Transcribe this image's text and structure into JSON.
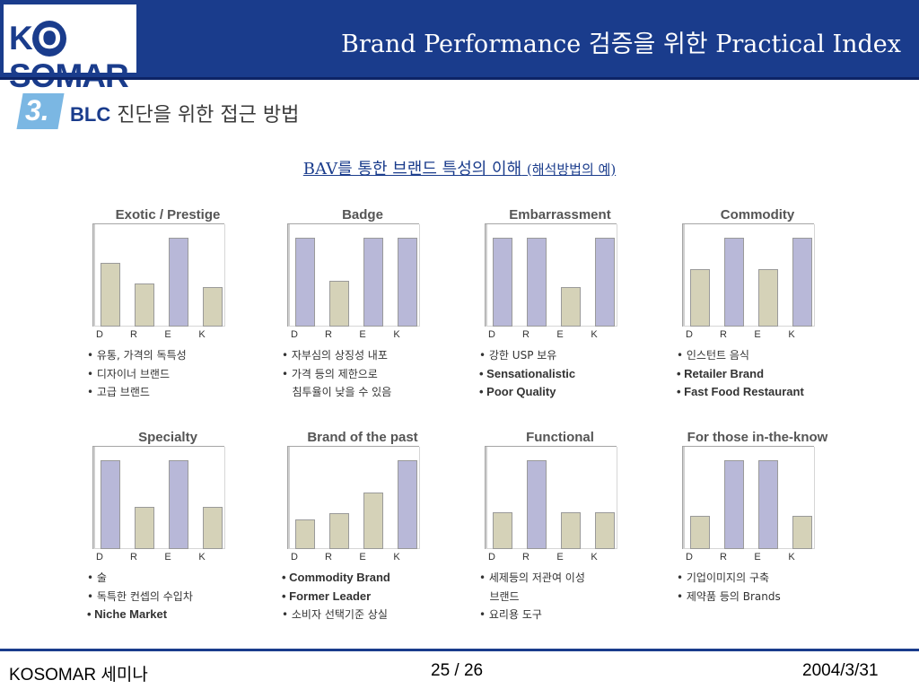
{
  "header": {
    "logo_text": "KOSOMAR",
    "title": "Brand Performance 검증을 위한 Practical Index"
  },
  "section": {
    "number": "3.",
    "title_bold": "BLC",
    "title_rest": " 진단을 위한 접근 방법"
  },
  "subtitle": {
    "main": "BAV를 통한 브랜드 특성의 이해",
    "note": "(해석방법의 예)"
  },
  "colors": {
    "low_bar": "#d5d2b8",
    "high_bar": "#b8b8d8",
    "header": "#1a3c8c"
  },
  "chart_data": [
    {
      "type": "bar",
      "title": "Exotic / Prestige",
      "categories": [
        "D",
        "R",
        "E",
        "K"
      ],
      "values": [
        72,
        48,
        100,
        44
      ],
      "ylim": [
        0,
        115
      ],
      "bullets": [
        "• 유통, 가격의 독특성",
        "• 디자이너 브랜드",
        "• 고급 브랜드"
      ]
    },
    {
      "type": "bar",
      "title": "Badge",
      "categories": [
        "D",
        "R",
        "E",
        "K"
      ],
      "values": [
        100,
        51,
        100,
        100
      ],
      "ylim": [
        0,
        115
      ],
      "bullets": [
        "• 자부심의 상징성 내포",
        "• 가격 등의 제한으로",
        "  침투율이 낮을 수 있음"
      ]
    },
    {
      "type": "bar",
      "title": "Embarrassment",
      "categories": [
        "D",
        "R",
        "E",
        "K"
      ],
      "values": [
        100,
        100,
        44,
        100
      ],
      "ylim": [
        0,
        115
      ],
      "bullets": [
        "• 강한 USP 보유",
        "• Sensationalistic",
        "• Poor Quality"
      ]
    },
    {
      "type": "bar",
      "title": "Commodity",
      "categories": [
        "D",
        "R",
        "E",
        "K"
      ],
      "values": [
        65,
        100,
        65,
        100
      ],
      "ylim": [
        0,
        115
      ],
      "bullets": [
        "• 인스턴트 음식",
        "• Retailer Brand",
        "• Fast Food Restaurant"
      ]
    },
    {
      "type": "bar",
      "title": "Specialty",
      "categories": [
        "D",
        "R",
        "E",
        "K"
      ],
      "values": [
        100,
        47,
        100,
        47
      ],
      "ylim": [
        0,
        115
      ],
      "bullets": [
        "• 술",
        "• 독특한 컨셉의 수입차",
        "• Niche Market"
      ]
    },
    {
      "type": "bar",
      "title": "Brand of the past",
      "categories": [
        "D",
        "R",
        "E",
        "K"
      ],
      "values": [
        33,
        40,
        64,
        100
      ],
      "ylim": [
        0,
        115
      ],
      "bullets": [
        "• Commodity Brand",
        "• Former Leader",
        "• 소비자 선택기준 상실"
      ]
    },
    {
      "type": "bar",
      "title": "Functional",
      "categories": [
        "D",
        "R",
        "E",
        "K"
      ],
      "values": [
        41,
        100,
        41,
        41
      ],
      "ylim": [
        0,
        115
      ],
      "bullets": [
        "• 세제등의 저관여 이성",
        "  브랜드",
        "• 요리용 도구"
      ]
    },
    {
      "type": "bar",
      "title": "For those in-the-know",
      "categories": [
        "D",
        "R",
        "E",
        "K"
      ],
      "values": [
        37,
        100,
        100,
        37
      ],
      "ylim": [
        0,
        115
      ],
      "bullets": [
        "• 기업이미지의 구축",
        "• 제약품 등의 Brands"
      ]
    }
  ],
  "footer": {
    "left": "KOSOMAR 세미나",
    "page": "25 / 26",
    "date": "2004/3/31"
  }
}
